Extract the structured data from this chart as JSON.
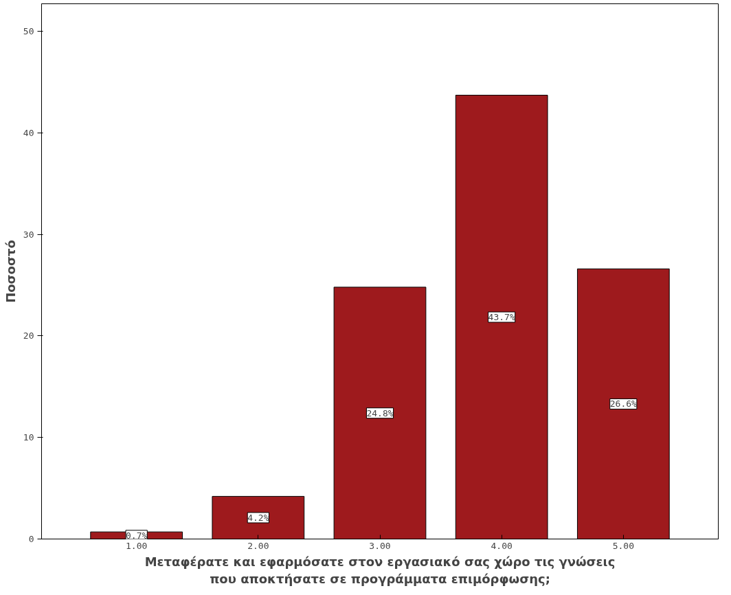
{
  "chart_data": {
    "type": "bar",
    "xlabel": "Μεταφέρατε και εφαρμόσατε στον εργασιακό σας χώρο τις γνώσεις\nπου αποκτήσατε σε προγράμματα επιμόρφωσης;",
    "ylabel": "Ποσοστό",
    "categories": [
      "1.00",
      "2.00",
      "3.00",
      "4.00",
      "5.00"
    ],
    "values": [
      0.7,
      4.2,
      24.8,
      43.7,
      26.6
    ],
    "value_labels": [
      "0.7%",
      "4.2%",
      "24.8%",
      "43.7%",
      "26.6%"
    ],
    "color": "#9e1a1d",
    "ylim": [
      0,
      52.7
    ],
    "yticks": [
      0,
      10,
      20,
      30,
      40,
      50
    ],
    "grid": false
  }
}
